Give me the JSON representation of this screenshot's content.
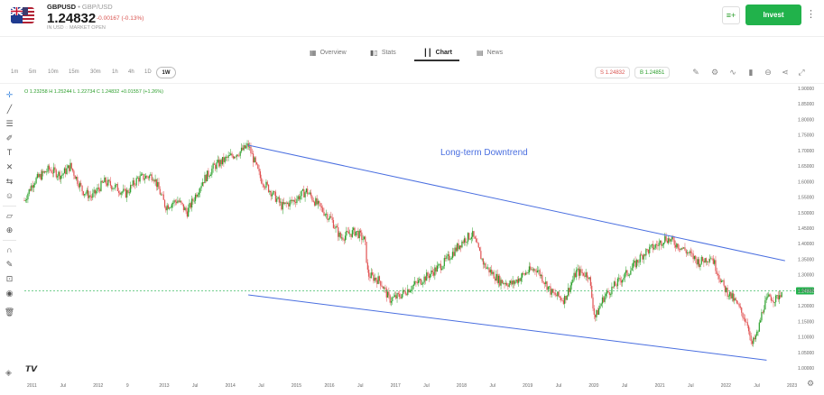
{
  "header": {
    "symbol": "GBPUSD",
    "separator": "•",
    "pair_name": "GBP/USD",
    "price": "1.24832",
    "change": "-0.00167 (-0.13%)",
    "market_status": "IN USD  ◌ MARKET OPEN",
    "invest_label": "Invest",
    "watch_icon": "watchlist-icon",
    "more_icon": "more-vertical-icon"
  },
  "tabs": [
    {
      "label": "Overview",
      "icon": "grid-icon"
    },
    {
      "label": "Stats",
      "icon": "stats-icon"
    },
    {
      "label": "Chart",
      "icon": "candles-icon",
      "active": true
    },
    {
      "label": "News",
      "icon": "news-icon"
    }
  ],
  "timeframes": [
    "1m",
    "5m",
    "10m",
    "15m",
    "30m",
    "1h",
    "4h",
    "1D",
    "1W"
  ],
  "selected_timeframe": "1W",
  "quotes": {
    "sell": "S 1.24832",
    "buy": "B 1.24851"
  },
  "ohlc": "O 1.23258  H 1.25244  L 1.22734  C 1.24832 +0.01557 (+1.26%)",
  "colors": {
    "up": "#2aa02a",
    "down": "#e05050",
    "trend": "#4a6fe0",
    "invest": "#21b24b",
    "last": "#21b24b"
  },
  "chart_data": {
    "type": "candlestick",
    "annotation": "Long-term Downtrend",
    "last_price_label": "1.24832",
    "ylim": [
      1.0,
      1.9
    ],
    "y_ticks": [
      "1.90000",
      "1.85000",
      "1.80000",
      "1.75000",
      "1.70000",
      "1.65000",
      "1.60000",
      "1.55000",
      "1.50000",
      "1.45000",
      "1.40000",
      "1.35000",
      "1.30000",
      "1.25000",
      "1.20000",
      "1.15000",
      "1.10000",
      "1.05000",
      "1.00000"
    ],
    "x_ticks": [
      "2011",
      "Jul",
      "2012",
      "9",
      "2013",
      "Jul",
      "2014",
      "Jul",
      "2015",
      "2016",
      "Jul",
      "2017",
      "Jul",
      "2018",
      "Jul",
      "2019",
      "Jul",
      "2020",
      "Jul",
      "2021",
      "Jul",
      "2022",
      "Jul",
      "2023"
    ],
    "trend_lines": [
      {
        "name": "upper",
        "from": {
          "x": 2014.55,
          "y": 1.717
        },
        "to": {
          "x": 2023.3,
          "y": 1.345
        }
      },
      {
        "name": "lower",
        "from": {
          "x": 2014.55,
          "y": 1.235
        },
        "to": {
          "x": 2023.0,
          "y": 1.025
        }
      }
    ],
    "price_path": [
      [
        2010.9,
        1.54
      ],
      [
        2011.05,
        1.6
      ],
      [
        2011.3,
        1.64
      ],
      [
        2011.5,
        1.62
      ],
      [
        2011.65,
        1.65
      ],
      [
        2011.85,
        1.57
      ],
      [
        2012.0,
        1.55
      ],
      [
        2012.2,
        1.6
      ],
      [
        2012.4,
        1.58
      ],
      [
        2012.55,
        1.56
      ],
      [
        2012.75,
        1.61
      ],
      [
        2013.0,
        1.62
      ],
      [
        2013.2,
        1.52
      ],
      [
        2013.4,
        1.54
      ],
      [
        2013.55,
        1.5
      ],
      [
        2013.8,
        1.6
      ],
      [
        2014.0,
        1.65
      ],
      [
        2014.25,
        1.68
      ],
      [
        2014.45,
        1.7
      ],
      [
        2014.55,
        1.717
      ],
      [
        2014.75,
        1.61
      ],
      [
        2014.95,
        1.56
      ],
      [
        2015.1,
        1.52
      ],
      [
        2015.3,
        1.54
      ],
      [
        2015.5,
        1.57
      ],
      [
        2015.7,
        1.52
      ],
      [
        2015.9,
        1.48
      ],
      [
        2016.05,
        1.42
      ],
      [
        2016.3,
        1.44
      ],
      [
        2016.45,
        1.41
      ],
      [
        2016.5,
        1.3
      ],
      [
        2016.7,
        1.28
      ],
      [
        2016.85,
        1.22
      ],
      [
        2017.0,
        1.23
      ],
      [
        2017.2,
        1.26
      ],
      [
        2017.5,
        1.3
      ],
      [
        2017.75,
        1.34
      ],
      [
        2018.05,
        1.41
      ],
      [
        2018.2,
        1.43
      ],
      [
        2018.4,
        1.33
      ],
      [
        2018.65,
        1.28
      ],
      [
        2018.85,
        1.27
      ],
      [
        2019.1,
        1.31
      ],
      [
        2019.25,
        1.32
      ],
      [
        2019.5,
        1.24
      ],
      [
        2019.7,
        1.22
      ],
      [
        2019.9,
        1.31
      ],
      [
        2020.1,
        1.3
      ],
      [
        2020.2,
        1.16
      ],
      [
        2020.35,
        1.23
      ],
      [
        2020.55,
        1.27
      ],
      [
        2020.8,
        1.32
      ],
      [
        2021.0,
        1.37
      ],
      [
        2021.25,
        1.4
      ],
      [
        2021.35,
        1.42
      ],
      [
        2021.6,
        1.39
      ],
      [
        2021.9,
        1.34
      ],
      [
        2022.1,
        1.36
      ],
      [
        2022.3,
        1.26
      ],
      [
        2022.5,
        1.21
      ],
      [
        2022.7,
        1.14
      ],
      [
        2022.75,
        1.07
      ],
      [
        2022.85,
        1.11
      ],
      [
        2022.95,
        1.2
      ],
      [
        2023.05,
        1.23
      ],
      [
        2023.15,
        1.22
      ],
      [
        2023.25,
        1.248
      ]
    ]
  }
}
